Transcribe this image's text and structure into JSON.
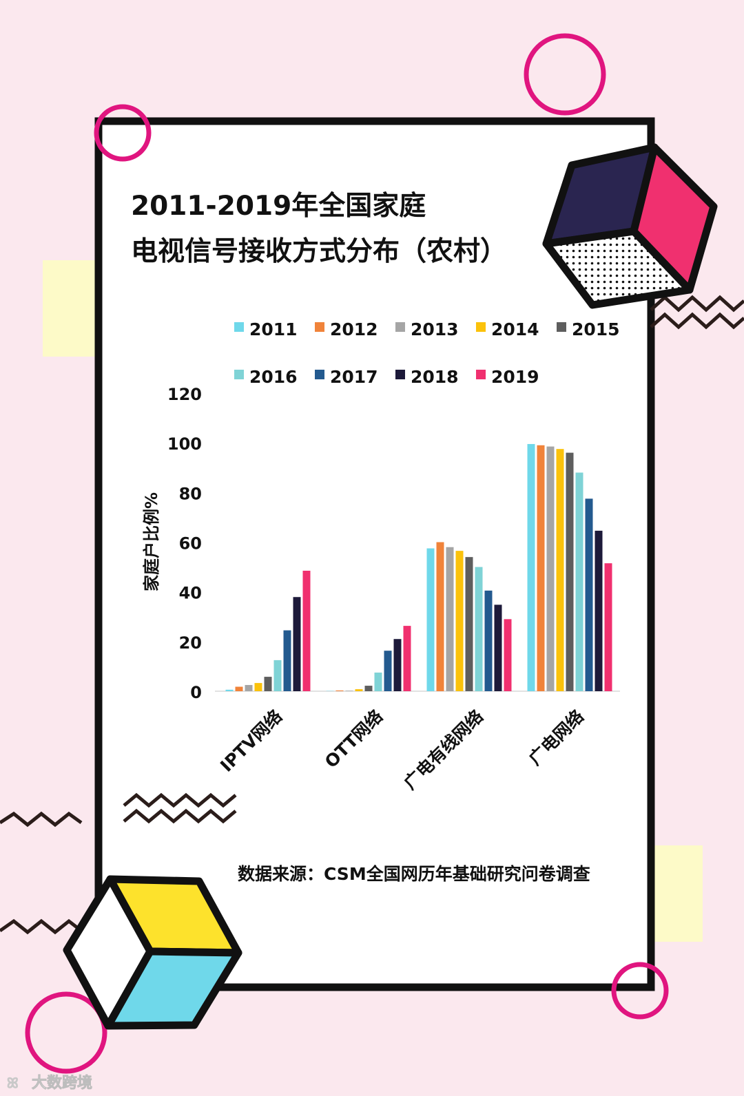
{
  "title": {
    "line1": "2011-2019年全国家庭",
    "line2": "电视信号接收方式分布（农村）"
  },
  "source": "数据来源：CSM全国网历年基础研究问卷调查",
  "watermark": "大数跨境",
  "colors": {
    "background": "#fbe8ee",
    "frame": "#111111",
    "accent_pink": "#e0157f",
    "cube_navy": "#2a2550",
    "cube_pink": "#f0306f",
    "cube_yellow": "#fde22c",
    "cube_cyan": "#6fd8ea",
    "pale_yellow": "#fdfac8"
  },
  "chart_data": {
    "type": "bar",
    "ylabel": "家庭户比例%",
    "ylim": [
      0,
      120
    ],
    "yticks": [
      0,
      20,
      40,
      60,
      80,
      100,
      120
    ],
    "categories": [
      "IPTV网络",
      "OTT网络",
      "广电有线网络",
      "广电网络"
    ],
    "legend_placement": "top",
    "series": [
      {
        "name": "2011",
        "color": "#6fd8ea",
        "values": [
          0.6,
          0.1,
          57.5,
          99.5
        ]
      },
      {
        "name": "2012",
        "color": "#f0833a",
        "values": [
          1.8,
          0.3,
          60.0,
          99.0
        ]
      },
      {
        "name": "2013",
        "color": "#a5a5a5",
        "values": [
          2.5,
          0.2,
          58.0,
          98.5
        ]
      },
      {
        "name": "2014",
        "color": "#fbc20b",
        "values": [
          3.3,
          0.8,
          56.5,
          97.5
        ]
      },
      {
        "name": "2015",
        "color": "#5e5e5e",
        "values": [
          5.8,
          2.2,
          54.0,
          96.0
        ]
      },
      {
        "name": "2016",
        "color": "#7fd3d6",
        "values": [
          12.5,
          7.5,
          50.0,
          88.0
        ]
      },
      {
        "name": "2017",
        "color": "#235a8f",
        "values": [
          24.5,
          16.3,
          40.5,
          77.5
        ]
      },
      {
        "name": "2018",
        "color": "#1d1a3a",
        "values": [
          37.9,
          21.0,
          34.8,
          64.6
        ]
      },
      {
        "name": "2019",
        "color": "#f0306f",
        "values": [
          48.5,
          26.3,
          29.0,
          51.5
        ]
      }
    ]
  }
}
